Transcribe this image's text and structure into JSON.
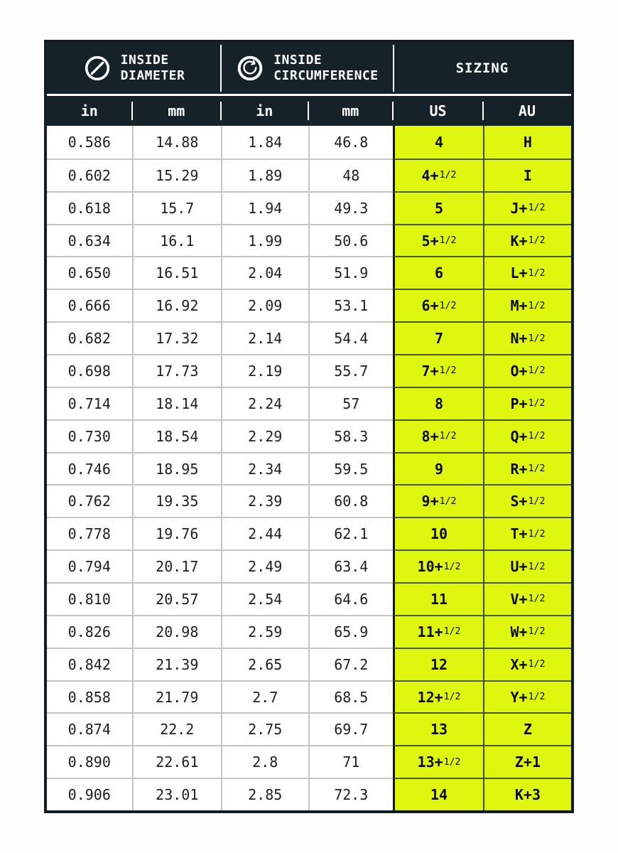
{
  "header": {
    "group1": {
      "line1": "INSIDE",
      "line2": "DIAMETER"
    },
    "group2": {
      "line1": "INSIDE",
      "line2": "CIRCUMFERENCE"
    },
    "group3": {
      "label": "SIZING"
    },
    "units": {
      "d_in": "in",
      "d_mm": "mm",
      "c_in": "in",
      "c_mm": "mm",
      "us": "US",
      "au": "AU"
    }
  },
  "colors": {
    "header_bg": "#16222a",
    "table_border": "#121c22",
    "highlight_yellow": "#dff70e",
    "grid_line_gray": "#c4c4c4",
    "grid_line_olive": "#4d541e",
    "divider_black": "#10161b",
    "header_text": "#ffffff",
    "cell_text": "#1e1e1e"
  },
  "chart_data": {
    "type": "table",
    "column_groups": [
      {
        "label": "INSIDE DIAMETER",
        "columns": [
          "in",
          "mm"
        ]
      },
      {
        "label": "INSIDE CIRCUMFERENCE",
        "columns": [
          "in",
          "mm"
        ]
      },
      {
        "label": "SIZING",
        "columns": [
          "US",
          "AU"
        ]
      }
    ],
    "columns": [
      "inside_diameter_in",
      "inside_diameter_mm",
      "inside_circumference_in",
      "inside_circumference_mm",
      "us_size",
      "au_size"
    ],
    "rows": [
      [
        "0.586",
        "14.88",
        "1.84",
        "46.8",
        "4",
        "H"
      ],
      [
        "0.602",
        "15.29",
        "1.89",
        "48",
        "4+1/2",
        "I"
      ],
      [
        "0.618",
        "15.7",
        "1.94",
        "49.3",
        "5",
        "J+1/2"
      ],
      [
        "0.634",
        "16.1",
        "1.99",
        "50.6",
        "5+1/2",
        "K+1/2"
      ],
      [
        "0.650",
        "16.51",
        "2.04",
        "51.9",
        "6",
        "L+1/2"
      ],
      [
        "0.666",
        "16.92",
        "2.09",
        "53.1",
        "6+1/2",
        "M+1/2"
      ],
      [
        "0.682",
        "17.32",
        "2.14",
        "54.4",
        "7",
        "N+1/2"
      ],
      [
        "0.698",
        "17.73",
        "2.19",
        "55.7",
        "7+1/2",
        "O+1/2"
      ],
      [
        "0.714",
        "18.14",
        "2.24",
        "57",
        "8",
        "P+1/2"
      ],
      [
        "0.730",
        "18.54",
        "2.29",
        "58.3",
        "8+1/2",
        "Q+1/2"
      ],
      [
        "0.746",
        "18.95",
        "2.34",
        "59.5",
        "9",
        "R+1/2"
      ],
      [
        "0.762",
        "19.35",
        "2.39",
        "60.8",
        "9+1/2",
        "S+1/2"
      ],
      [
        "0.778",
        "19.76",
        "2.44",
        "62.1",
        "10",
        "T+1/2"
      ],
      [
        "0.794",
        "20.17",
        "2.49",
        "63.4",
        "10+1/2",
        "U+1/2"
      ],
      [
        "0.810",
        "20.57",
        "2.54",
        "64.6",
        "11",
        "V+1/2"
      ],
      [
        "0.826",
        "20.98",
        "2.59",
        "65.9",
        "11+1/2",
        "W+1/2"
      ],
      [
        "0.842",
        "21.39",
        "2.65",
        "67.2",
        "12",
        "X+1/2"
      ],
      [
        "0.858",
        "21.79",
        "2.7",
        "68.5",
        "12+1/2",
        "Y+1/2"
      ],
      [
        "0.874",
        "22.2",
        "2.75",
        "69.7",
        "13",
        "Z"
      ],
      [
        "0.890",
        "22.61",
        "2.8",
        "71",
        "13+1/2",
        "Z+1"
      ],
      [
        "0.906",
        "23.01",
        "2.85",
        "72.3",
        "14",
        "K+3"
      ]
    ]
  }
}
